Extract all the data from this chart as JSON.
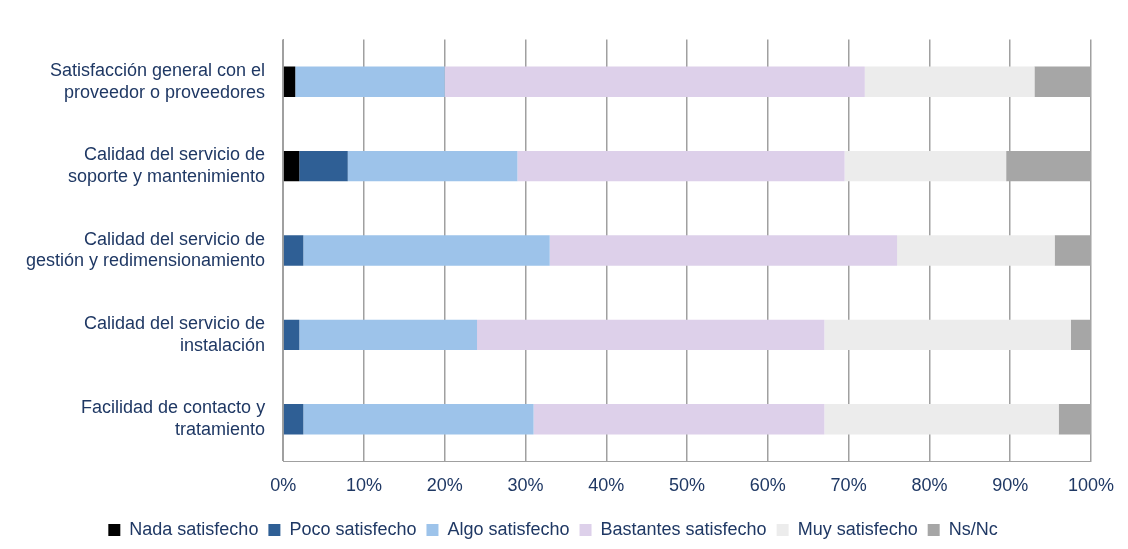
{
  "chart_data": {
    "type": "bar",
    "orientation": "horizontal",
    "stacked": true,
    "categories": [
      "Satisfacción general con el proveedor o proveedores",
      "Calidad del servicio de soporte y mantenimiento",
      "Calidad del servicio de gestión y redimensionamiento",
      "Calidad del servicio de instalación",
      "Facilidad de contacto y tratamiento"
    ],
    "series": [
      {
        "name": "Nada satisfecho",
        "color": "#000000",
        "values": [
          1.5,
          2,
          0,
          0,
          0
        ]
      },
      {
        "name": "Poco satisfecho",
        "color": "#2f5f95",
        "values": [
          0,
          6,
          2.5,
          2,
          2.5
        ]
      },
      {
        "name": "Algo satisfecho",
        "color": "#9dc3ea",
        "values": [
          18.5,
          21,
          30.5,
          22,
          28.5
        ]
      },
      {
        "name": "Bastantes satisfecho",
        "color": "#ddd0ea",
        "values": [
          52,
          40.5,
          43,
          43,
          36
        ]
      },
      {
        "name": "Muy satisfecho",
        "color": "#ececec",
        "values": [
          21,
          20,
          19.5,
          30.5,
          29
        ]
      },
      {
        "name": "Ns/Nc",
        "color": "#a6a6a6",
        "values": [
          7,
          10.5,
          4.5,
          2.5,
          4
        ]
      }
    ],
    "xlim": [
      0,
      100
    ],
    "xticks": [
      {
        "value": 0,
        "label": "0%"
      },
      {
        "value": 10,
        "label": "10%"
      },
      {
        "value": 20,
        "label": "20%"
      },
      {
        "value": 30,
        "label": "30%"
      },
      {
        "value": 40,
        "label": "40%"
      },
      {
        "value": 50,
        "label": "50%"
      },
      {
        "value": 60,
        "label": "60%"
      },
      {
        "value": 70,
        "label": "70%"
      },
      {
        "value": 80,
        "label": "80%"
      },
      {
        "value": 90,
        "label": "90%"
      },
      {
        "value": 100,
        "label": "100%"
      }
    ],
    "grid": "x",
    "legend": "bottom"
  }
}
